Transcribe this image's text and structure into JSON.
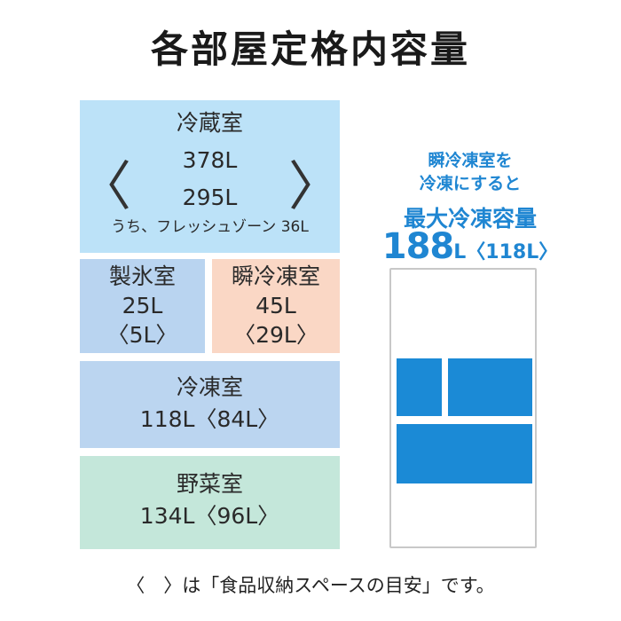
{
  "title": "各部屋定格内容量",
  "compartments": {
    "refrigerator": {
      "name": "冷蔵室",
      "total": "378L",
      "storage": "295L",
      "fresh_zone": "うち、フレッシュゾーン 36L",
      "bracket_open": "〈",
      "bracket_close": "〉"
    },
    "ice": {
      "name": "製氷室",
      "total": "25L",
      "storage": "〈5L〉"
    },
    "instant_freeze": {
      "name": "瞬冷凍室",
      "total": "45L",
      "storage": "〈29L〉"
    },
    "freezer": {
      "name": "冷凍室",
      "value": "118L〈84L〉"
    },
    "vegetable": {
      "name": "野菜室",
      "value": "134L〈96L〉"
    }
  },
  "callout": {
    "line1": "瞬冷凍室を",
    "line2": "冷凍にすると",
    "line3": "最大冷凍容量",
    "big_number": "188",
    "unit_storage": "L〈118L〉"
  },
  "footnote": "〈　〉は「食品収納スペースの目安」です。",
  "colors": {
    "refrigerator": "#bce2f8",
    "ice": "#b9d4f0",
    "instant_freeze": "#fad7c5",
    "freezer": "#bbd5f0",
    "vegetable": "#c4e7da",
    "accent": "#1f86d2"
  }
}
